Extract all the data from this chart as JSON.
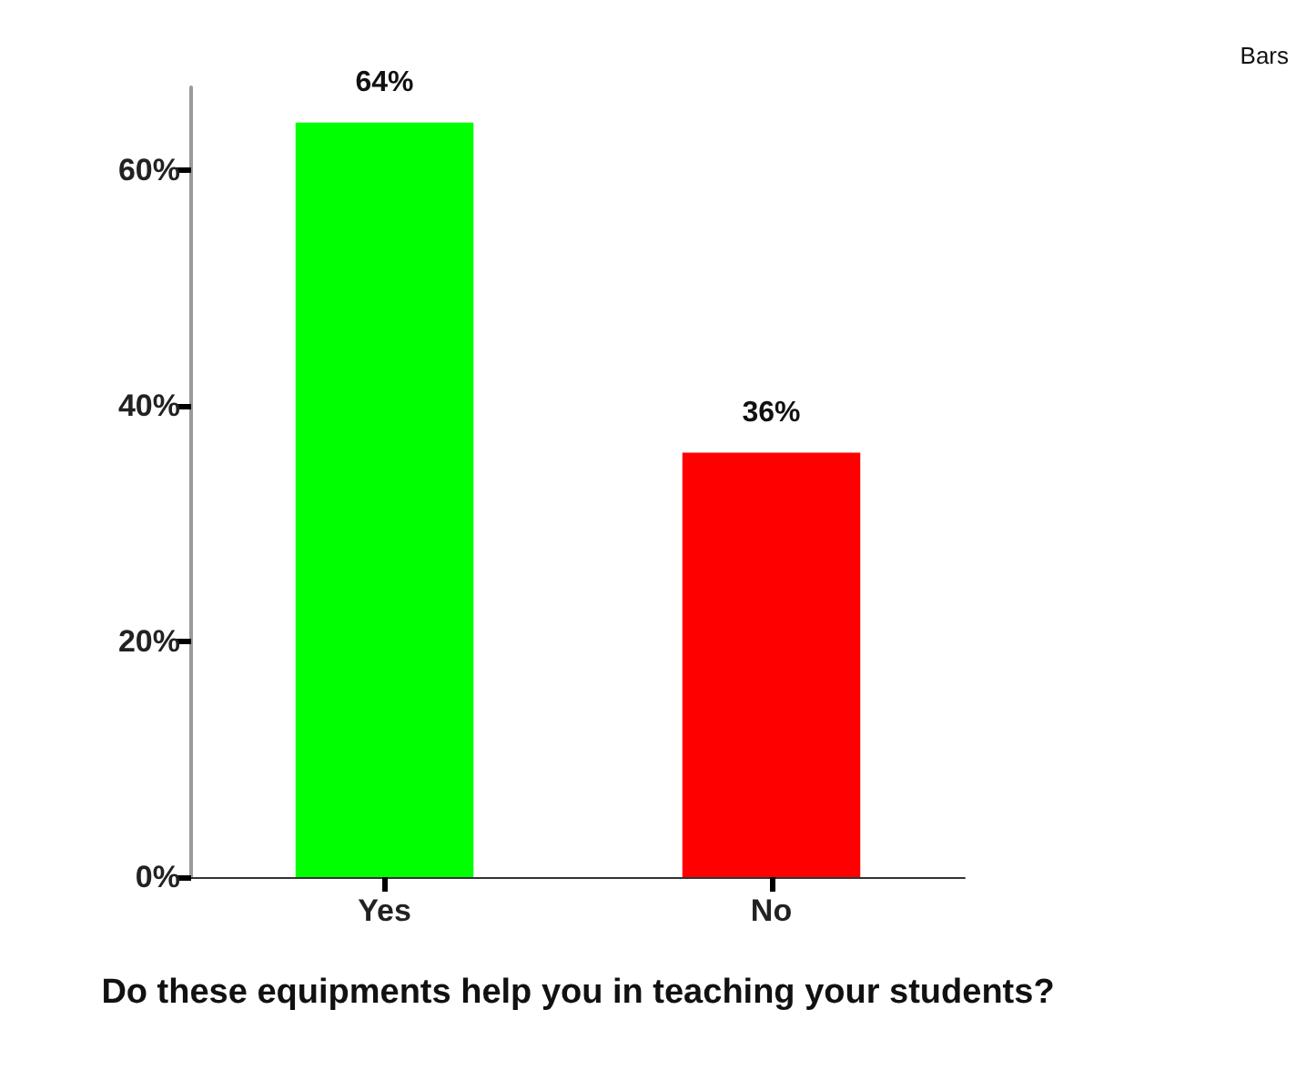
{
  "chart_data": {
    "type": "bar",
    "xlabel": "Do these equipments help you in teaching your students?",
    "categories": [
      "Yes",
      "No"
    ],
    "values": [
      64,
      36
    ],
    "colors": [
      "#00ff00",
      "#ff0000"
    ],
    "value_labels": [
      "64%",
      "36%"
    ],
    "ylim": [
      0,
      67
    ],
    "yticks": [
      {
        "value": 0,
        "label": "0%"
      },
      {
        "value": 20,
        "label": "20%"
      },
      {
        "value": 40,
        "label": "40%"
      },
      {
        "value": 60,
        "label": "60%"
      }
    ],
    "annotations": [
      "Bars"
    ]
  }
}
